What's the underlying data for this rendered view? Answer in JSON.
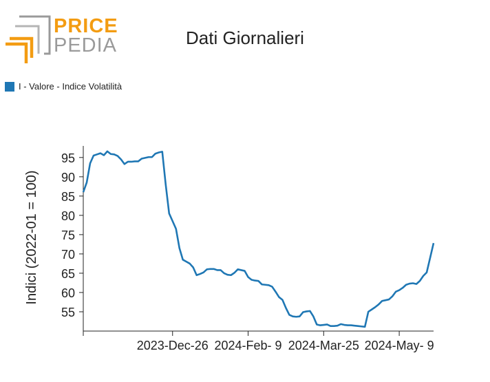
{
  "logo": {
    "word1": "PRICE",
    "word2": "PEDIA"
  },
  "legend": {
    "label": "I - Valore - Indice Volatilità",
    "color": "#1f77b4"
  },
  "chart_data": {
    "type": "line",
    "title": "Dati Giornalieri",
    "xlabel": "",
    "ylabel": "Indici (2022-01 = 100)",
    "ylim": [
      50,
      98
    ],
    "yticks": [
      55,
      60,
      65,
      70,
      75,
      80,
      85,
      90,
      95
    ],
    "x_ticks": [
      {
        "label": "2023-Dec-26",
        "index": 26
      },
      {
        "label": "2024-Feb- 9",
        "index": 48
      },
      {
        "label": "2024-Mar-25",
        "index": 70
      },
      {
        "label": "2024-May- 9",
        "index": 92
      }
    ],
    "grid": false,
    "series": [
      {
        "name": "I - Valore - Indice Volatilità",
        "color": "#1f77b4",
        "values": [
          86.0,
          88.5,
          93.5,
          95.5,
          95.8,
          96.1,
          95.6,
          96.6,
          95.9,
          95.8,
          95.4,
          94.5,
          93.3,
          93.9,
          93.9,
          94.0,
          94.0,
          94.7,
          94.9,
          95.1,
          95.1,
          96.0,
          96.3,
          96.5,
          88.0,
          80.5,
          78.5,
          76.5,
          71.5,
          68.5,
          68.0,
          67.5,
          66.5,
          64.5,
          64.8,
          65.2,
          66.0,
          66.1,
          66.1,
          65.8,
          65.8,
          65.0,
          64.6,
          64.5,
          65.1,
          66.0,
          65.8,
          65.6,
          64.0,
          63.3,
          63.1,
          63.0,
          62.1,
          62.0,
          61.9,
          61.5,
          60.2,
          58.8,
          58.1,
          56.0,
          54.2,
          53.8,
          53.7,
          53.8,
          54.9,
          55.1,
          55.2,
          53.8,
          51.7,
          51.5,
          51.6,
          51.7,
          51.3,
          51.3,
          51.4,
          51.8,
          51.6,
          51.5,
          51.5,
          51.4,
          51.3,
          51.2,
          51.1,
          55.0,
          55.6,
          56.2,
          56.9,
          57.8,
          58.0,
          58.2,
          59.0,
          60.2,
          60.6,
          61.2,
          62.0,
          62.3,
          62.4,
          62.2,
          63.0,
          64.3,
          65.2,
          69.0,
          72.8
        ]
      }
    ]
  }
}
